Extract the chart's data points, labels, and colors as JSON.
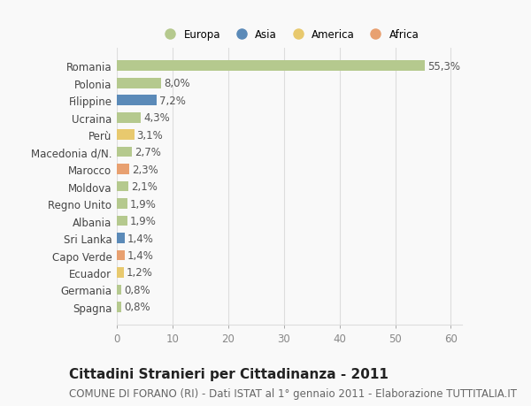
{
  "categories": [
    "Spagna",
    "Germania",
    "Ecuador",
    "Capo Verde",
    "Sri Lanka",
    "Albania",
    "Regno Unito",
    "Moldova",
    "Marocco",
    "Macedonia d/N.",
    "Perù",
    "Ucraina",
    "Filippine",
    "Polonia",
    "Romania"
  ],
  "values": [
    0.8,
    0.8,
    1.2,
    1.4,
    1.4,
    1.9,
    1.9,
    2.1,
    2.3,
    2.7,
    3.1,
    4.3,
    7.2,
    8.0,
    55.3
  ],
  "labels": [
    "0,8%",
    "0,8%",
    "1,2%",
    "1,4%",
    "1,4%",
    "1,9%",
    "1,9%",
    "2,1%",
    "2,3%",
    "2,7%",
    "3,1%",
    "4,3%",
    "7,2%",
    "8,0%",
    "55,3%"
  ],
  "colors": [
    "#b5c98e",
    "#b5c98e",
    "#e8c96e",
    "#e8a070",
    "#5b8ab8",
    "#b5c98e",
    "#b5c98e",
    "#b5c98e",
    "#e8a070",
    "#b5c98e",
    "#e8c96e",
    "#b5c98e",
    "#5b8ab8",
    "#b5c98e",
    "#b5c98e"
  ],
  "legend_labels": [
    "Europa",
    "Asia",
    "America",
    "Africa"
  ],
  "legend_colors": [
    "#b5c98e",
    "#5b8ab8",
    "#e8c96e",
    "#e8a070"
  ],
  "title": "Cittadini Stranieri per Cittadinanza - 2011",
  "subtitle": "COMUNE DI FORANO (RI) - Dati ISTAT al 1° gennaio 2011 - Elaborazione TUTTITALIA.IT",
  "xlim": [
    0,
    62
  ],
  "xticks": [
    0,
    10,
    20,
    30,
    40,
    50,
    60
  ],
  "bg_color": "#f9f9f9",
  "grid_color": "#dddddd",
  "bar_height": 0.6,
  "label_fontsize": 8.5,
  "title_fontsize": 11,
  "subtitle_fontsize": 8.5,
  "tick_fontsize": 8.5
}
